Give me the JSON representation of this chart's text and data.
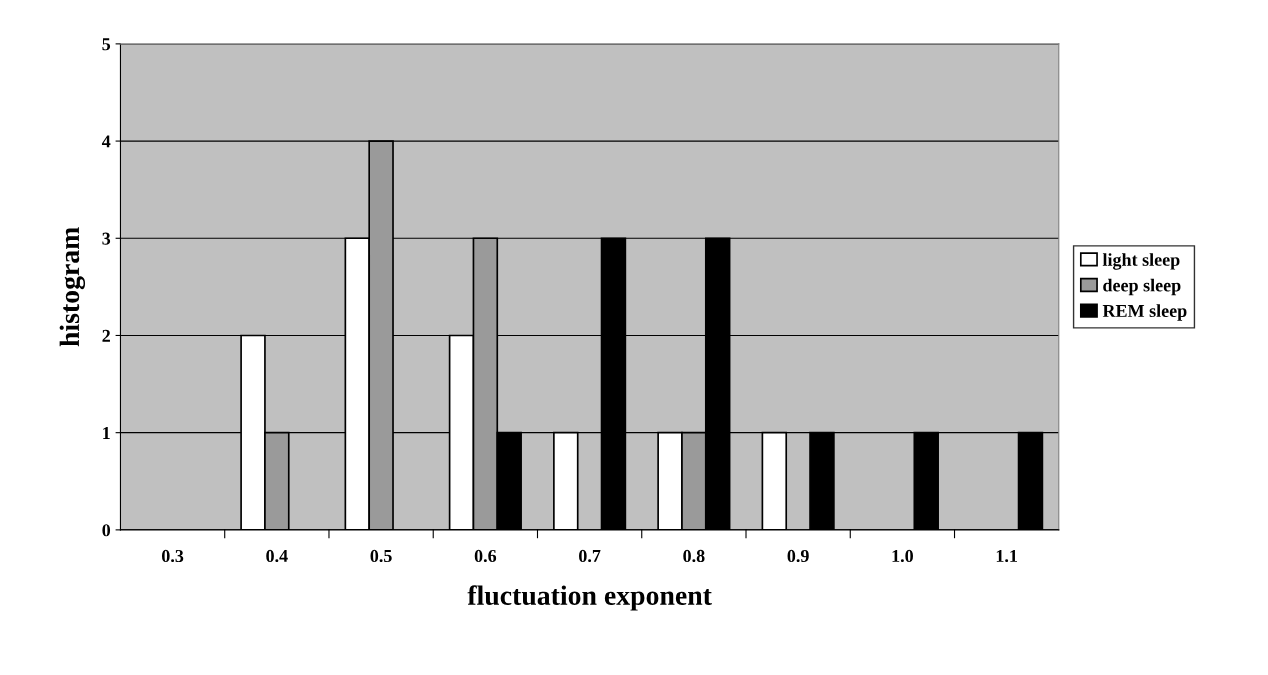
{
  "chart_data": {
    "type": "bar",
    "xlabel": "fluctuation exponent",
    "ylabel": "histogram",
    "categories": [
      "0.3",
      "0.4",
      "0.5",
      "0.6",
      "0.7",
      "0.8",
      "0.9",
      "1.0",
      "1.1"
    ],
    "series": [
      {
        "name": "light sleep",
        "color": "#ffffff",
        "values": [
          0,
          2,
          3,
          2,
          1,
          1,
          1,
          0,
          0
        ]
      },
      {
        "name": "deep sleep",
        "color": "#9a9a9a",
        "values": [
          0,
          1,
          4,
          3,
          0,
          1,
          0,
          0,
          0
        ]
      },
      {
        "name": "REM sleep",
        "color": "#000000",
        "values": [
          0,
          0,
          0,
          1,
          3,
          3,
          1,
          1,
          1
        ]
      }
    ],
    "ylim": [
      0,
      5
    ],
    "yticks": [
      0,
      1,
      2,
      3,
      4,
      5
    ],
    "grid": "y",
    "legend": "right"
  }
}
